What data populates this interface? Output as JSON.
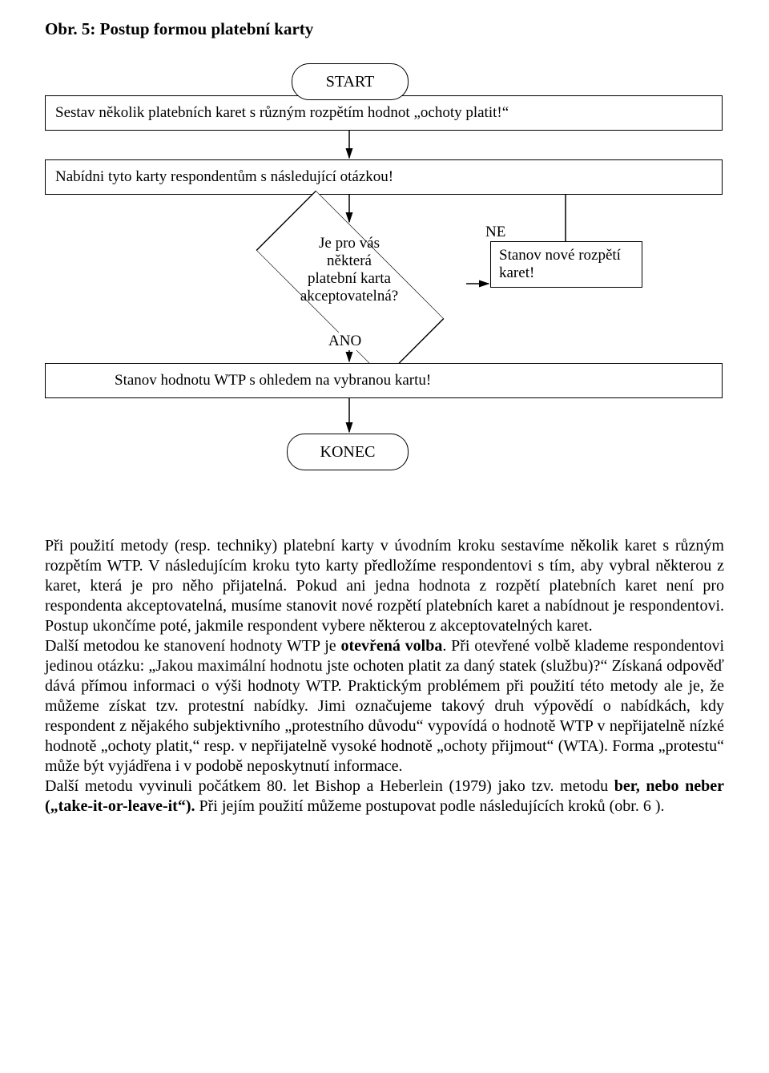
{
  "title": "Obr. 5:  Postup formou platební karty",
  "flow": {
    "start": "START",
    "box1": "Sestav několik platebních karet s různým rozpětím hodnot „ochoty platit!“",
    "box2": "Nabídni tyto karty respondentům s následující otázkou!",
    "decision": "Je pro vás\nněkterá\nplatební karta\nakceptovatelná?",
    "label_ne": "NE",
    "label_ano": "ANO",
    "box_right": "Stanov nové rozpětí\nkaret!",
    "box3": "Stanov hodnotu WTP s ohledem na vybranou kartu!",
    "end": "KONEC",
    "stroke": "#000000",
    "arrow_width": 1.5
  },
  "paragraph": "Při použití  metody (resp. techniky) platební karty v úvodním kroku sestavíme několik karet s různým rozpětím WTP. V následujícím kroku tyto karty předložíme respondentovi s tím, aby vybral některou z karet, která je pro něho přijatelná. Pokud ani jedna hodnota z rozpětí platebních karet  není pro respondenta akceptovatelná, musíme stanovit nové rozpětí platebních karet a nabídnout je respondentovi. Postup ukončíme poté, jakmile respondent vybere některou z akceptovatelných karet.\nDalší metodou ke stanovení hodnoty WTP je <b>otevřená volba</b>. Při otevřené volbě  klademe respondentovi jedinou otázku: „Jakou maximální hodnotu jste ochoten platit za daný statek (službu)?“ Získaná odpověď dává přímou informaci o výši hodnoty WTP. Praktickým problémem při použití této metody  ale je, že   můžeme získat tzv. protestní nabídky. Jimi označujeme takový druh výpovědí o nabídkách, kdy respondent z nějakého subjektivního „protestního důvodu“ vypovídá o hodnotě WTP v nepřijatelně nízké  hodnotě „ochoty platit,“ resp. v nepřijatelně vysoké hodnotě „ochoty přijmout“ (WTA). Forma „protestu“ může být vyjádřena i v podobě neposkytnutí informace.\nDalší metodu vyvinuli počátkem 80. let  Bishop a Heberlein (1979) jako tzv. metodu <b>ber, nebo neber  („take-it-or-leave-it“).</b> Při jejím použití můžeme postupovat podle následujících kroků (obr. 6 )."
}
